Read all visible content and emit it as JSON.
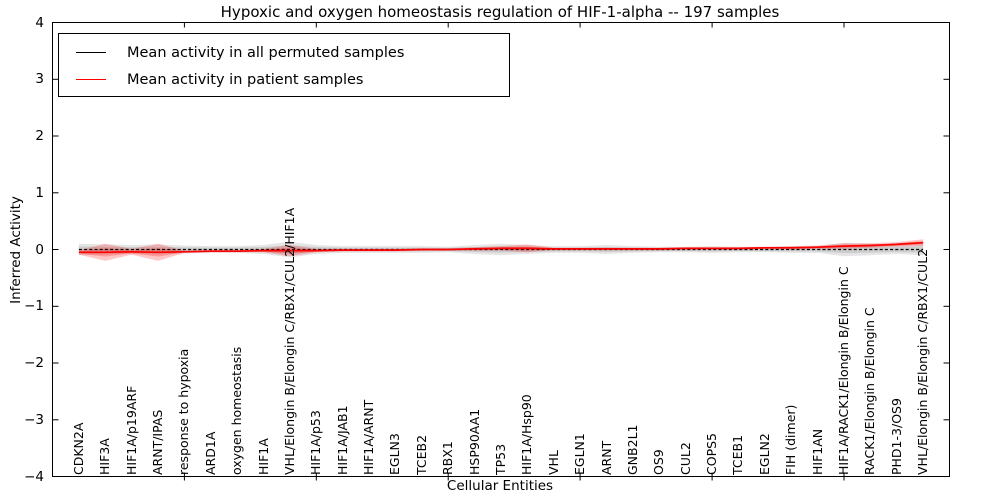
{
  "title": "Hypoxic and oxygen homeostasis regulation of HIF-1-alpha -- 197 samples",
  "legend": {
    "entries": [
      {
        "label": "Mean activity in all permuted samples",
        "color": "#000000"
      },
      {
        "label": "Mean activity in patient samples",
        "color": "#ff0000"
      }
    ]
  },
  "colors": {
    "permuted_line": "#000000",
    "patient_line": "#ff0000",
    "permuted_band": "rgba(0,0,0,0.10)",
    "patient_band": "rgba(255,0,0,0.22)",
    "frame": "#000000"
  },
  "chart_data": {
    "type": "line",
    "title": "Hypoxic and oxygen homeostasis regulation of HIF-1-alpha -- 197 samples",
    "xlabel": "Cellular Entities",
    "ylabel": "Inferred Activity",
    "ylim": [
      -4,
      4
    ],
    "yticks": [
      4,
      3,
      2,
      1,
      0,
      -1,
      -2,
      -3,
      -4
    ],
    "xlim": [
      0,
      34
    ],
    "x": [
      1,
      2,
      3,
      4,
      5,
      6,
      7,
      8,
      9,
      10,
      11,
      12,
      13,
      14,
      15,
      16,
      17,
      18,
      19,
      20,
      21,
      22,
      23,
      24,
      25,
      26,
      27,
      28,
      29,
      30,
      31,
      32,
      33
    ],
    "major_xticks": [
      5,
      10,
      15,
      20,
      25,
      30
    ],
    "categories": [
      "CDKN2A",
      "HIF3A",
      "HIF1A/p19ARF",
      "ARNT/IPAS",
      "response to hypoxia",
      "ARD1A",
      "oxygen homeostasis",
      "HIF1A",
      "VHL/Elongin B/Elongin C/RBX1/CUL2/HIF1A",
      "HIF1A/p53",
      "HIF1A/JAB1",
      "HIF1A/ARNT",
      "EGLN3",
      "TCEB2",
      "RBX1",
      "HSP90AA1",
      "TP53",
      "HIF1A/Hsp90",
      "VHL",
      "EGLN1",
      "ARNT",
      "GNB2L1",
      "OS9",
      "CUL2",
      "COPS5",
      "TCEB1",
      "EGLN2",
      "FIH (dimer)",
      "HIF1AN",
      "HIF1A/RACK1/Elongin B/Elongin C",
      "RACK1/Elongin B/Elongin C",
      "PHD1-3/OS9",
      "VHL/Elongin B/Elongin C/RBX1/CUL2"
    ],
    "series": [
      {
        "name": "Mean activity in all permuted samples",
        "style": "dashed",
        "values": [
          0,
          0,
          0,
          0,
          0,
          0,
          0,
          0,
          0,
          0,
          0,
          0,
          0,
          0,
          0,
          0,
          0,
          0,
          0,
          0,
          0,
          0,
          0,
          0,
          0,
          0,
          0,
          0,
          0,
          0,
          0,
          0,
          0
        ]
      },
      {
        "name": "Mean activity in patient samples",
        "style": "solid",
        "values": [
          -0.05,
          -0.05,
          -0.04,
          -0.05,
          -0.04,
          -0.03,
          -0.03,
          -0.02,
          -0.02,
          -0.02,
          -0.01,
          -0.01,
          -0.01,
          0,
          0,
          0.01,
          0.02,
          0.02,
          0.01,
          0.01,
          0.01,
          0.01,
          0.01,
          0.02,
          0.02,
          0.02,
          0.03,
          0.03,
          0.04,
          0.06,
          0.07,
          0.09,
          0.12
        ]
      }
    ],
    "bands": [
      {
        "name": "permuted-std-band",
        "center": "series0",
        "halfwidth": [
          0.1,
          0.09,
          0.08,
          0.09,
          0.07,
          0.06,
          0.06,
          0.08,
          0.14,
          0.08,
          0.06,
          0.06,
          0.06,
          0.06,
          0.05,
          0.08,
          0.1,
          0.08,
          0.06,
          0.06,
          0.08,
          0.06,
          0.05,
          0.05,
          0.06,
          0.05,
          0.05,
          0.06,
          0.06,
          0.12,
          0.1,
          0.08,
          0.1
        ]
      },
      {
        "name": "patient-std-band",
        "center": "series1",
        "halfwidth": [
          0.04,
          0.15,
          0.05,
          0.15,
          0.02,
          0.02,
          0.02,
          0.03,
          0.1,
          0.03,
          0.02,
          0.02,
          0.02,
          0.02,
          0.02,
          0.03,
          0.04,
          0.07,
          0.02,
          0.02,
          0.02,
          0.02,
          0.02,
          0.02,
          0.02,
          0.02,
          0.02,
          0.03,
          0.03,
          0.05,
          0.04,
          0.04,
          0.06
        ]
      }
    ],
    "legend_position": "upper left",
    "grid": false
  }
}
